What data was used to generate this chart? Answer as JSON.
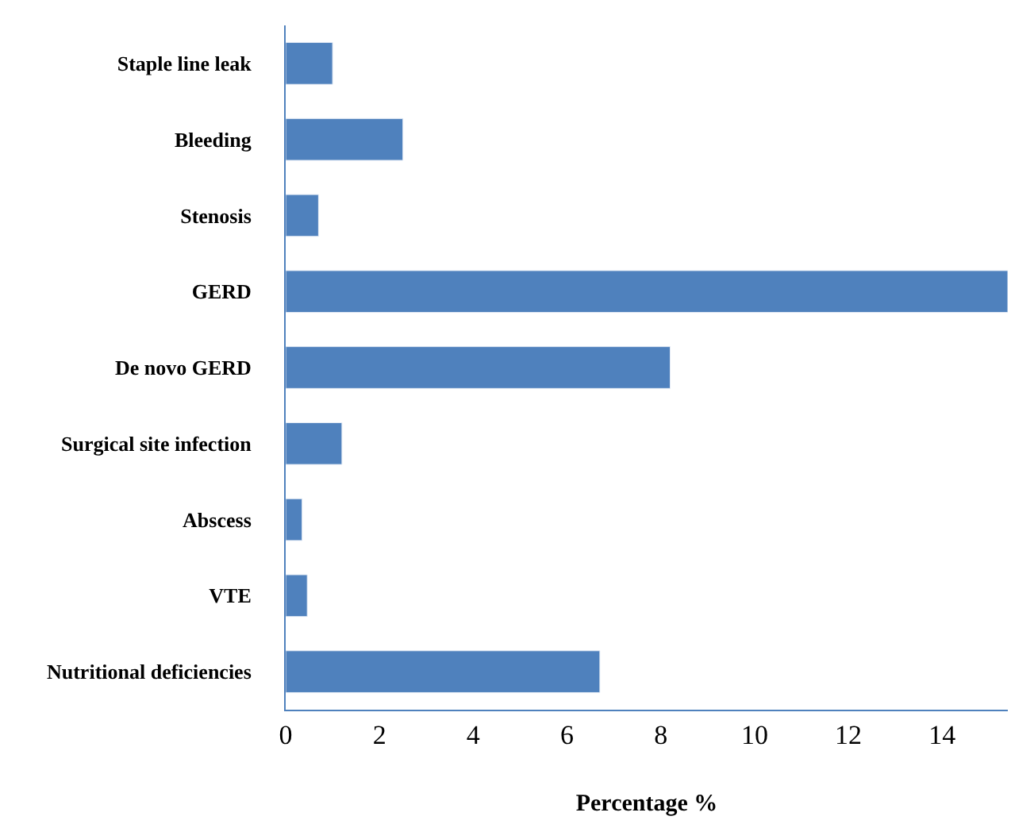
{
  "chart_data": {
    "type": "bar",
    "orientation": "horizontal",
    "xlabel": "Percentage %",
    "categories": [
      "Staple line leak",
      "Bleeding",
      "Stenosis",
      "GERD",
      "De novo GERD",
      "Surgical site infection",
      "Abscess",
      "VTE",
      "Nutritional deficiencies"
    ],
    "values": [
      1.0,
      2.5,
      0.7,
      15.4,
      8.2,
      1.2,
      0.35,
      0.46,
      6.7
    ],
    "color": "#4f81bd",
    "xlim": [
      0,
      15.4
    ],
    "xticks": [
      0,
      2,
      4,
      6,
      8,
      10,
      12,
      14
    ]
  }
}
